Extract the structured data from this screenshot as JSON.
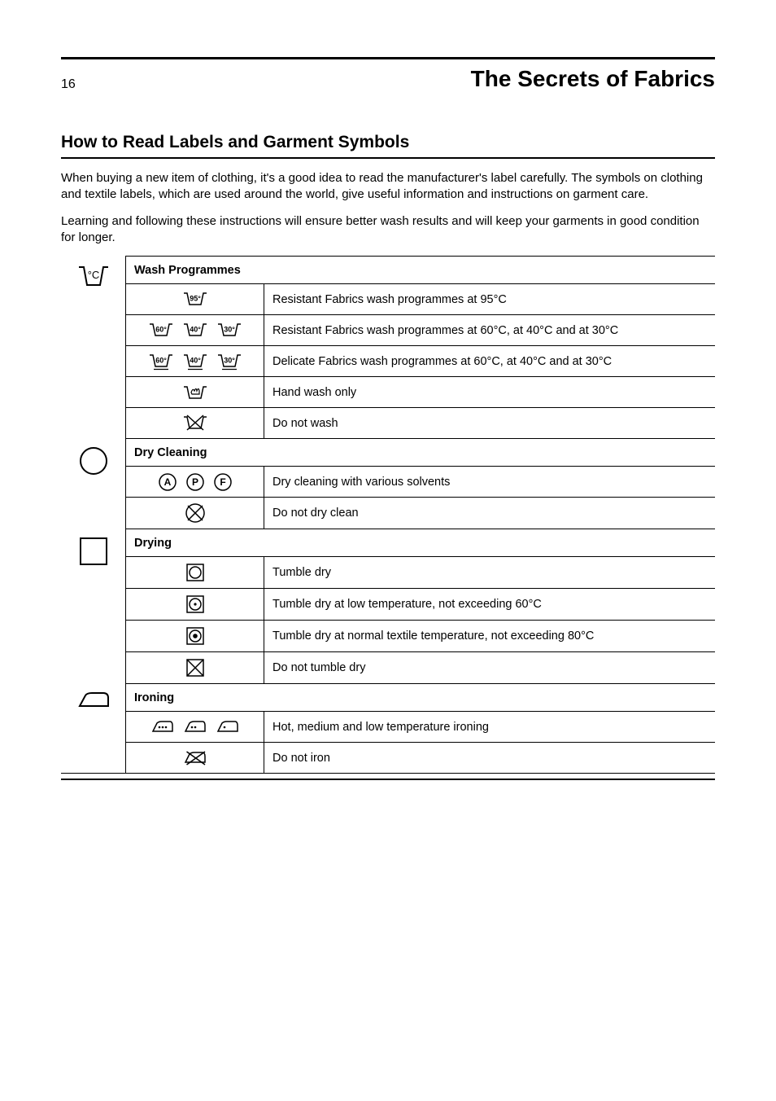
{
  "page_number": "16",
  "section_title": "The Secrets of Fabrics",
  "heading": "How to Read Labels and Garment Symbols",
  "intro1": "When buying a new item of clothing, it's a good idea to read the manufacturer's label carefully. The symbols on clothing and textile labels, which are used around the world, give useful information and instructions on garment care.",
  "intro2": "Learning and following these instructions will ensure better wash results and will keep your garments in good condition for longer.",
  "groups": [
    {
      "icon": "tub-temp",
      "header": "Wash Programmes",
      "rows": [
        {
          "sym": "tub95",
          "desc": "Resistant Fabrics wash programmes at 95°C"
        },
        {
          "sym": "tubs-604030",
          "desc": "Resistant Fabrics wash programmes at 60°C, at 40°C and at 30°C"
        },
        {
          "sym": "tubs-604030u",
          "desc": "Delicate Fabrics wash programmes at 60°C, at 40°C and at 30°C"
        },
        {
          "sym": "handwash",
          "desc": "Hand wash only"
        },
        {
          "sym": "tub-x",
          "desc": "Do not wash"
        }
      ]
    },
    {
      "icon": "circle",
      "header": "Dry Cleaning",
      "rows": [
        {
          "sym": "apf",
          "desc": "Dry cleaning with various solvents"
        },
        {
          "sym": "circle-x",
          "desc": "Do not dry clean"
        }
      ]
    },
    {
      "icon": "square",
      "header": "Drying",
      "rows": [
        {
          "sym": "sq-circle",
          "desc": "Tumble dry"
        },
        {
          "sym": "sq-dot1",
          "desc": "Tumble dry at low temperature, not exceeding 60°C",
          "tall": true
        },
        {
          "sym": "sq-dot-solid",
          "desc": "Tumble dry at normal textile temperature, not exceeding 80°C",
          "tall": true
        },
        {
          "sym": "sq-x",
          "desc": "Do not tumble dry"
        }
      ]
    },
    {
      "icon": "iron",
      "header": "Ironing",
      "rows": [
        {
          "sym": "irons-321",
          "desc": "Hot, medium and low temperature ironing"
        },
        {
          "sym": "iron-x",
          "desc": "Do not iron"
        }
      ]
    }
  ]
}
